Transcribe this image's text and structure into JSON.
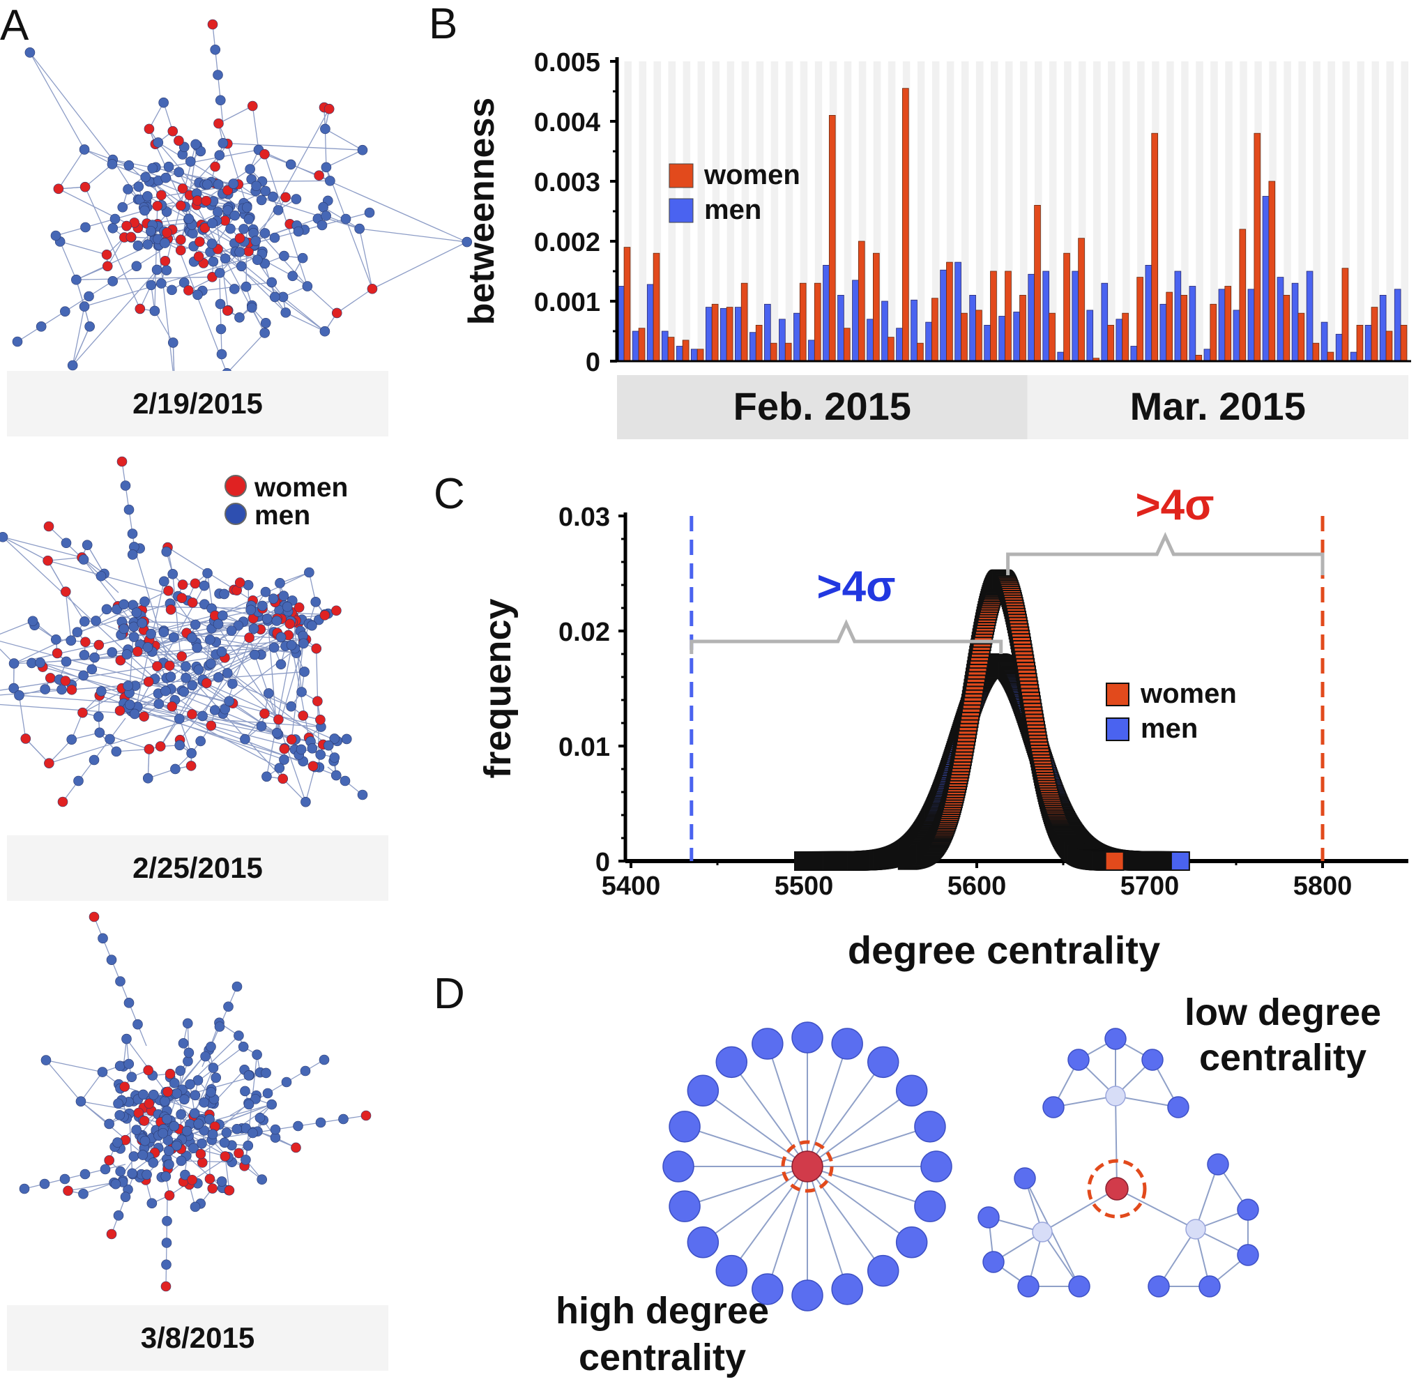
{
  "panels": {
    "a": {
      "letter": "A",
      "dates": [
        "2/19/2015",
        "2/25/2015",
        "3/8/2015"
      ],
      "legend": {
        "women": "women",
        "men": "men"
      }
    },
    "b": {
      "letter": "B"
    },
    "c": {
      "letter": "C"
    },
    "d": {
      "letter": "D",
      "high_label": [
        "high degree",
        "centrality"
      ],
      "low_label": [
        "low degree",
        "centrality"
      ]
    }
  },
  "colors": {
    "women": "#e24a1c",
    "men": "#4a63f0",
    "network_women": "#e02222",
    "network_men": "#4667b5",
    "edge": "#8fa0c8",
    "hub": "#d13b4a",
    "light_node": "#d7ddf7",
    "gray_bracket": "#b3b3b3",
    "sigma_blue": "#2238e0",
    "sigma_red": "#e0241c"
  },
  "chart_data": [
    {
      "type": "bar",
      "panel": "B",
      "ylabel": "betweenness",
      "ylim": [
        0,
        0.005
      ],
      "yticks": [
        "0",
        "0.001",
        "0.002",
        "0.003",
        "0.004",
        "0.005"
      ],
      "month_labels": [
        "Feb. 2015",
        "Mar. 2015"
      ],
      "feb_days": 28,
      "legend": [
        "women",
        "men"
      ],
      "series": [
        {
          "name": "men",
          "values": [
            0.00125,
            0.0005,
            0.00128,
            0.0005,
            0.00025,
            0.0002,
            0.0009,
            0.00088,
            0.0009,
            0.00048,
            0.00095,
            0.0007,
            0.0008,
            0.00035,
            0.0016,
            0.0011,
            0.00135,
            0.0007,
            0.001,
            0.00055,
            0.00102,
            0.00065,
            0.00152,
            0.00165,
            0.0011,
            0.0006,
            0.00075,
            0.00082,
            0.00145,
            0.0015,
            0.00015,
            0.0015,
            0.00085,
            0.0013,
            0.0007,
            0.00025,
            0.0016,
            0.00095,
            0.0015,
            0.00125,
            0.0002,
            0.0012,
            0.00085,
            0.0012,
            0.00275,
            0.0014,
            0.0013,
            0.0015,
            0.00065,
            0.00045,
            0.00015,
            0.0006,
            0.0011,
            0.0012
          ]
        },
        {
          "name": "women",
          "values": [
            0.0019,
            0.00055,
            0.0018,
            0.0004,
            0.00035,
            0.0002,
            0.00095,
            0.0009,
            0.0013,
            0.0006,
            0.0003,
            0.0003,
            0.0013,
            0.0013,
            0.0041,
            0.00055,
            0.002,
            0.0018,
            0.0004,
            0.00455,
            0.0003,
            0.00105,
            0.00165,
            0.0008,
            0.00085,
            0.0015,
            0.0015,
            0.0011,
            0.0026,
            0.0008,
            0.0018,
            0.00205,
            5e-05,
            0.0006,
            0.0008,
            0.0014,
            0.0038,
            0.00115,
            0.0011,
            0.0001,
            0.00095,
            0.00125,
            0.0022,
            0.0038,
            0.003,
            0.0011,
            0.0008,
            0.0003,
            0.00015,
            0.00155,
            0.0006,
            0.0009,
            0.0005,
            0.0006
          ]
        }
      ]
    },
    {
      "type": "scatter",
      "panel": "C",
      "xlabel": "degree centrality",
      "ylabel": "frequency",
      "xlim": [
        5400,
        5850
      ],
      "ylim": [
        0,
        0.03
      ],
      "xticks": [
        5400,
        5500,
        5600,
        5700,
        5800
      ],
      "yticks": [
        "0",
        "0.01",
        "0.02",
        "0.03"
      ],
      "legend": [
        "women",
        "men"
      ],
      "distributions": [
        {
          "name": "women",
          "mean": 5614,
          "sd": 16,
          "peak": 0.0245,
          "range": [
            5560,
            5680
          ]
        },
        {
          "name": "men",
          "mean": 5612,
          "sd": 22,
          "peak": 0.0172,
          "range": [
            5500,
            5718
          ]
        }
      ],
      "thresholds": [
        {
          "name": "men",
          "x": 5435,
          "label": ">4σ"
        },
        {
          "name": "women",
          "x": 5800,
          "label": ">4σ"
        }
      ]
    }
  ]
}
